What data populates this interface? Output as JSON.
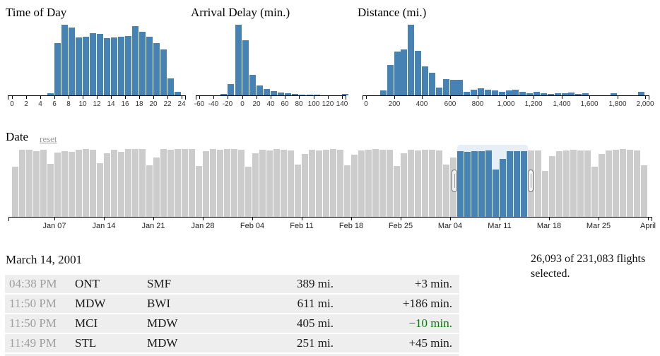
{
  "colors": {
    "bar_blue": "#4682b4",
    "bar_gray": "#cccccc",
    "brush_fill": "#e7eff6",
    "axis": "#000000",
    "delay_early_green": "#008000",
    "time_text": "#9e9e9e",
    "row_bg": "#eeeeee",
    "reset_gray": "#999999"
  },
  "chart_data": [
    {
      "type": "bar",
      "title": "Time of Day",
      "xlim": [
        0,
        24
      ],
      "bin_size": 1,
      "x_ticks": [
        "0",
        "2",
        "4",
        "6",
        "8",
        "10",
        "12",
        "14",
        "16",
        "18",
        "20",
        "22",
        "24"
      ],
      "units": "hour of day; bar heights are % of tallest bar",
      "bins": [
        [
          5,
          3
        ],
        [
          6,
          74
        ],
        [
          7,
          100
        ],
        [
          8,
          96
        ],
        [
          9,
          82
        ],
        [
          10,
          83
        ],
        [
          11,
          88
        ],
        [
          12,
          87
        ],
        [
          13,
          81
        ],
        [
          14,
          82
        ],
        [
          15,
          83
        ],
        [
          16,
          84
        ],
        [
          17,
          98
        ],
        [
          18,
          90
        ],
        [
          19,
          83
        ],
        [
          20,
          74
        ],
        [
          21,
          65
        ],
        [
          22,
          24
        ],
        [
          23,
          5
        ]
      ]
    },
    {
      "type": "bar",
      "title": "Arrival Delay (min.)",
      "xlim": [
        -60,
        140
      ],
      "bin_size": 10,
      "x_ticks": [
        "-60",
        "-40",
        "-20",
        "0",
        "20",
        "40",
        "60",
        "80",
        "100",
        "120",
        "140"
      ],
      "units": "minutes; bar heights are % of tallest bar",
      "bins": [
        [
          -30,
          2
        ],
        [
          -20,
          16
        ],
        [
          -10,
          100
        ],
        [
          0,
          78
        ],
        [
          10,
          29
        ],
        [
          20,
          13.5
        ],
        [
          30,
          8.5
        ],
        [
          40,
          5.5
        ],
        [
          50,
          3.5
        ],
        [
          60,
          2.5
        ],
        [
          70,
          1.5
        ],
        [
          80,
          1
        ],
        [
          90,
          0.8
        ],
        [
          100,
          0.6
        ],
        [
          140,
          1.5
        ]
      ]
    },
    {
      "type": "bar",
      "title": "Distance (mi.)",
      "xlim": [
        0,
        2000
      ],
      "bin_size": 50,
      "x_ticks": [
        "0",
        "200",
        "400",
        "600",
        "800",
        "1,000",
        "1,200",
        "1,400",
        "1,600",
        "1,800",
        "2,000"
      ],
      "units": "miles; bar heights are % of tallest bar",
      "bins": [
        [
          100,
          7
        ],
        [
          150,
          43
        ],
        [
          200,
          62
        ],
        [
          250,
          65
        ],
        [
          300,
          100
        ],
        [
          350,
          63
        ],
        [
          400,
          41
        ],
        [
          450,
          32
        ],
        [
          500,
          11
        ],
        [
          550,
          23
        ],
        [
          600,
          22
        ],
        [
          650,
          22
        ],
        [
          700,
          5
        ],
        [
          750,
          8
        ],
        [
          800,
          10
        ],
        [
          850,
          8
        ],
        [
          900,
          7
        ],
        [
          950,
          5
        ],
        [
          1000,
          7
        ],
        [
          1050,
          8
        ],
        [
          1100,
          5
        ],
        [
          1150,
          3
        ],
        [
          1200,
          4.5
        ],
        [
          1250,
          3
        ],
        [
          1300,
          1.5
        ],
        [
          1350,
          2.5
        ],
        [
          1400,
          3
        ],
        [
          1450,
          3.5
        ],
        [
          1500,
          1.5
        ],
        [
          1550,
          2.5
        ],
        [
          1750,
          3
        ],
        [
          1950,
          5
        ]
      ]
    },
    {
      "type": "bar",
      "title": "Date",
      "first_day": "Jan 01",
      "bin_size_days": 1,
      "x_ticks": [
        "Jan 07",
        "Jan 14",
        "Jan 21",
        "Jan 28",
        "Feb 04",
        "Feb 11",
        "Feb 18",
        "Feb 25",
        "Mar 04",
        "Mar 11",
        "Mar 18",
        "Mar 25",
        "April"
      ],
      "units": "daily flight counts; bar heights are % of tallest bar",
      "day_heights_pct": [
        74,
        99,
        99,
        97,
        99,
        78,
        95,
        97,
        96,
        99,
        100,
        99,
        79,
        94,
        99,
        96,
        100,
        100,
        100,
        76,
        87,
        100,
        99,
        100,
        100,
        100,
        75,
        97,
        100,
        99,
        100,
        100,
        99,
        74,
        94,
        99,
        98,
        100,
        99,
        98,
        77,
        93,
        99,
        98,
        99,
        100,
        99,
        76,
        92,
        98,
        99,
        100,
        99,
        99,
        75,
        94,
        99,
        98,
        99,
        99,
        98,
        77,
        87,
        97,
        96,
        97,
        97,
        98,
        70,
        85,
        97,
        97,
        97,
        98,
        98,
        68,
        90,
        97,
        98,
        99,
        98,
        98,
        74,
        93,
        98,
        99,
        100,
        99,
        98,
        76
      ],
      "selection": {
        "start_index": 63,
        "end_index": 72,
        "start_label": "Mar 05",
        "end_label": "Mar 14"
      }
    }
  ],
  "date_section": {
    "reset_label": "reset"
  },
  "flight_list": {
    "date_header": "March 14, 2001",
    "rows": [
      {
        "time": "04:38 PM",
        "origin": "ONT",
        "destination": "SMF",
        "distance": "389 mi.",
        "delay": "+3 min.",
        "early": false
      },
      {
        "time": "11:50 PM",
        "origin": "MDW",
        "destination": "BWI",
        "distance": "611 mi.",
        "delay": "+186 min.",
        "early": false
      },
      {
        "time": "11:50 PM",
        "origin": "MCI",
        "destination": "MDW",
        "distance": "405 mi.",
        "delay": "−10 min.",
        "early": true
      },
      {
        "time": "11:49 PM",
        "origin": "STL",
        "destination": "MDW",
        "distance": "251 mi.",
        "delay": "+45 min.",
        "early": false
      }
    ]
  },
  "status": {
    "line": "26,093 of 231,083 flights selected."
  }
}
